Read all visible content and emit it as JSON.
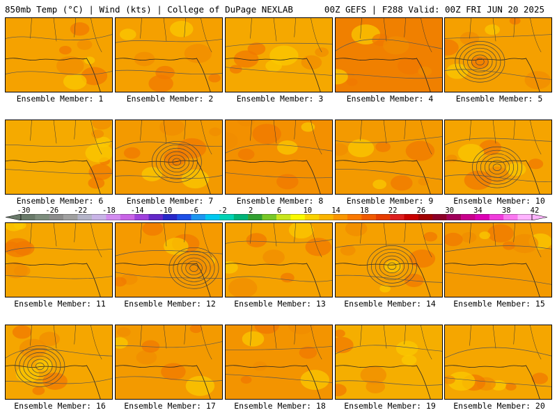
{
  "header": {
    "title_left": "850mb Temp (°C) | Wind (kts) | College of DuPage NEXLAB",
    "title_right": "00Z GEFS | F288 Valid: 00Z FRI JUN 20 2025"
  },
  "colorbar": {
    "ticks": [
      "-30",
      "-26",
      "-22",
      "-18",
      "-14",
      "-10",
      "-6",
      "-2",
      "2",
      "6",
      "10",
      "14",
      "18",
      "22",
      "26",
      "30",
      "34",
      "38",
      "42"
    ],
    "colors": [
      "#6a7a6a",
      "#7d8d7d",
      "#8c8c8c",
      "#a0a0a0",
      "#b4b4c8",
      "#c8b4e6",
      "#d28cf0",
      "#c864e6",
      "#a040dc",
      "#6428c8",
      "#2828c8",
      "#1e50e6",
      "#1e96f0",
      "#00c8f0",
      "#00d2b4",
      "#00b478",
      "#32a032",
      "#78c828",
      "#c8e61e",
      "#fafa00",
      "#fad200",
      "#fab400",
      "#fa9600",
      "#fa7800",
      "#f05a00",
      "#e63c00",
      "#dc1e1e",
      "#c80000",
      "#a00000",
      "#8c0028",
      "#a0005a",
      "#c8008c",
      "#dc00b4",
      "#f03cdc",
      "#fa78f0",
      "#ffb4ff"
    ]
  },
  "panels": [
    {
      "label": "Ensemble Member: 1",
      "base": "#f5a200",
      "low": false
    },
    {
      "label": "Ensemble Member: 2",
      "base": "#f5a000",
      "low": false
    },
    {
      "label": "Ensemble Member: 3",
      "base": "#f5a800",
      "low": false
    },
    {
      "label": "Ensemble Member: 4",
      "base": "#f08000",
      "low": false
    },
    {
      "label": "Ensemble Member: 5",
      "base": "#f5a000",
      "low": true
    },
    {
      "label": "Ensemble Member: 6",
      "base": "#f5aa00",
      "low": false
    },
    {
      "label": "Ensemble Member: 7",
      "base": "#f39a00",
      "low": true
    },
    {
      "label": "Ensemble Member: 8",
      "base": "#f39000",
      "low": false
    },
    {
      "label": "Ensemble Member: 9",
      "base": "#f39a00",
      "low": false
    },
    {
      "label": "Ensemble Member: 10",
      "base": "#f5a400",
      "low": true
    },
    {
      "label": "Ensemble Member: 11",
      "base": "#f5a600",
      "low": false
    },
    {
      "label": "Ensemble Member: 12",
      "base": "#f59a00",
      "low": true
    },
    {
      "label": "Ensemble Member: 13",
      "base": "#f5a200",
      "low": false
    },
    {
      "label": "Ensemble Member: 14",
      "base": "#f5a000",
      "low": true
    },
    {
      "label": "Ensemble Member: 15",
      "base": "#f39a00",
      "low": false
    },
    {
      "label": "Ensemble Member: 16",
      "base": "#f5a600",
      "low": true
    },
    {
      "label": "Ensemble Member: 17",
      "base": "#f39a00",
      "low": false
    },
    {
      "label": "Ensemble Member: 18",
      "base": "#f39400",
      "low": false
    },
    {
      "label": "Ensemble Member: 19",
      "base": "#f5ae00",
      "low": false
    },
    {
      "label": "Ensemble Member: 20",
      "base": "#f5a600",
      "low": false
    }
  ]
}
